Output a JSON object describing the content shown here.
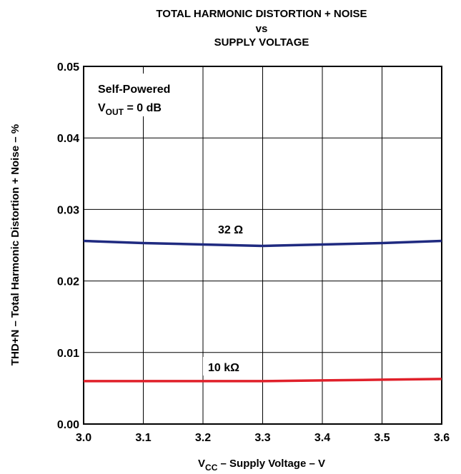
{
  "chart_data": {
    "type": "line",
    "title_lines": [
      "TOTAL HARMONIC DISTORTION + NOISE",
      "vs",
      "SUPPLY VOLTAGE"
    ],
    "xlabel": {
      "main": "V",
      "sub": "CC",
      "rest": " – Supply Voltage – V"
    },
    "ylabel": "THD+N – Total Harmonic Distortion + Noise – %",
    "xlim": [
      3.0,
      3.6
    ],
    "ylim": [
      0.0,
      0.05
    ],
    "x_ticks": [
      "3.0",
      "3.1",
      "3.2",
      "3.3",
      "3.4",
      "3.5",
      "3.6"
    ],
    "y_ticks": [
      "0.00",
      "0.01",
      "0.02",
      "0.03",
      "0.04",
      "0.05"
    ],
    "grid": true,
    "annotation": {
      "line1": "Self-Powered",
      "line2_main": "V",
      "line2_sub": "OUT",
      "line2_rest": " = 0 dB"
    },
    "series": [
      {
        "name": "32 Ω",
        "color": "#1f2a80",
        "x": [
          3.0,
          3.1,
          3.2,
          3.3,
          3.4,
          3.5,
          3.6
        ],
        "y": [
          0.0256,
          0.0253,
          0.0251,
          0.0249,
          0.0251,
          0.0253,
          0.0256
        ]
      },
      {
        "name": "10 kΩ",
        "color": "#e0202a",
        "x": [
          3.0,
          3.1,
          3.2,
          3.3,
          3.4,
          3.5,
          3.6
        ],
        "y": [
          0.006,
          0.006,
          0.006,
          0.006,
          0.0061,
          0.0062,
          0.0063
        ]
      }
    ]
  }
}
